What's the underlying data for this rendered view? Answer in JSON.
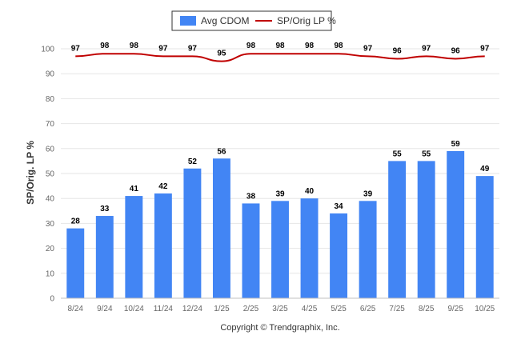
{
  "chart_data": {
    "type": "bar",
    "categories": [
      "8/24",
      "9/24",
      "10/24",
      "11/24",
      "12/24",
      "1/25",
      "2/25",
      "3/25",
      "4/25",
      "5/25",
      "6/25",
      "7/25",
      "8/25",
      "9/25",
      "10/25"
    ],
    "series": [
      {
        "name": "Avg CDOM",
        "type": "bar",
        "color": "#4285f4",
        "values": [
          28,
          33,
          41,
          42,
          52,
          56,
          38,
          39,
          40,
          34,
          39,
          55,
          55,
          59,
          49
        ]
      },
      {
        "name": "SP/Orig LP %",
        "type": "line",
        "color": "#c00000",
        "values": [
          97,
          98,
          98,
          97,
          97,
          95,
          98,
          98,
          98,
          98,
          97,
          96,
          97,
          96,
          97
        ]
      }
    ],
    "ylabel": "SP/Orig. LP %",
    "ylim": [
      0,
      100
    ],
    "yticks": [
      0,
      10,
      20,
      30,
      40,
      50,
      60,
      70,
      80,
      90,
      100
    ],
    "grid": true,
    "legend_position": "top-center",
    "footer": "Copyright © Trendgraphix, Inc."
  }
}
